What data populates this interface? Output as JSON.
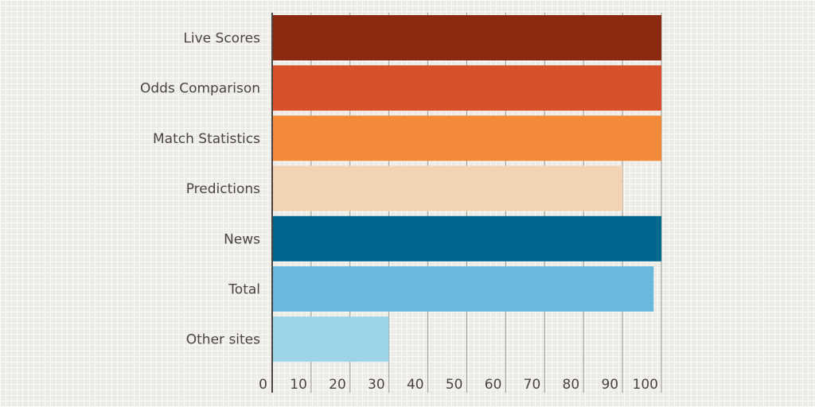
{
  "chart_data": {
    "type": "bar",
    "orientation": "horizontal",
    "title": "",
    "xlabel": "",
    "ylabel": "",
    "categories": [
      "Live Scores",
      "Odds Comparison",
      "Match Statistics",
      "Predictions",
      "News",
      "Total",
      "Other sites"
    ],
    "values": [
      100,
      100,
      100,
      90,
      100,
      98,
      30
    ],
    "colors": [
      "#8b2a10",
      "#d9512b",
      "#f28a39",
      "#f2d4b5",
      "#006890",
      "#6ab8de",
      "#9dd4e8"
    ],
    "xlim": [
      0,
      100
    ],
    "xticks": [
      0,
      10,
      20,
      30,
      40,
      50,
      60,
      70,
      80,
      90,
      100
    ],
    "grid": "vertical",
    "legend": "none"
  }
}
